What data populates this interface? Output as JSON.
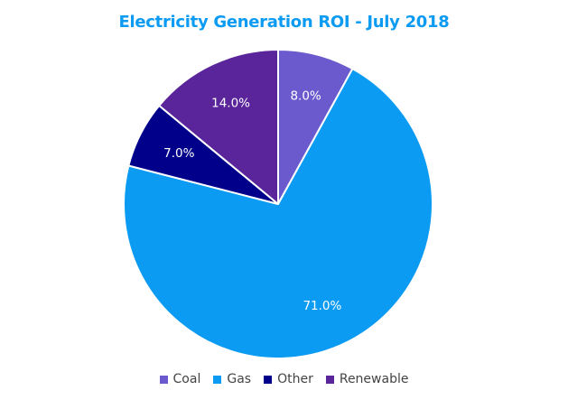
{
  "chart_data": {
    "type": "pie",
    "title": "Electricity Generation ROI - July 2018",
    "categories": [
      "Coal",
      "Gas",
      "Other",
      "Renewable"
    ],
    "values": [
      8.0,
      71.0,
      7.0,
      14.0
    ],
    "labels": [
      "8.0%",
      "71.0%",
      "7.0%",
      "14.0%"
    ],
    "colors": [
      "#6a5acd",
      "#0b9bf2",
      "#00008b",
      "#5a259a"
    ],
    "start_angle": "12 o'clock",
    "direction": "clockwise",
    "legend_position": "bottom"
  }
}
